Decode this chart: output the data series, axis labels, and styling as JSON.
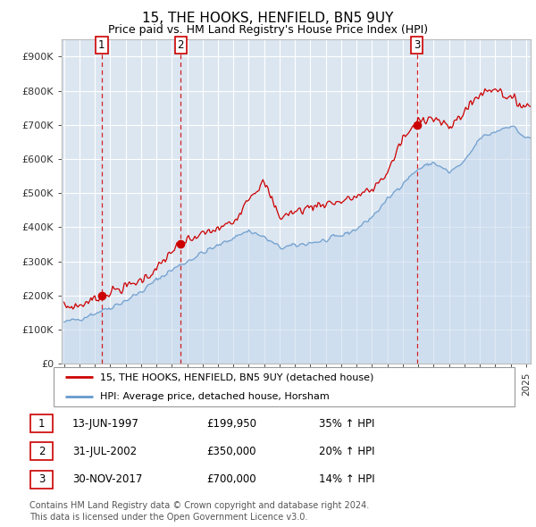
{
  "title": "15, THE HOOKS, HENFIELD, BN5 9UY",
  "subtitle": "Price paid vs. HM Land Registry's House Price Index (HPI)",
  "ylim": [
    0,
    950000
  ],
  "yticks": [
    0,
    100000,
    200000,
    300000,
    400000,
    500000,
    600000,
    700000,
    800000,
    900000
  ],
  "ytick_labels": [
    "£0",
    "£100K",
    "£200K",
    "£300K",
    "£400K",
    "£500K",
    "£600K",
    "£700K",
    "£800K",
    "£900K"
  ],
  "x_start_year": 1995,
  "x_end_year": 2025,
  "sale_years": [
    1997.453,
    2002.581,
    2017.916
  ],
  "sale_prices": [
    199950,
    350000,
    700000
  ],
  "sale_labels": [
    "1",
    "2",
    "3"
  ],
  "hpi_key_years": [
    1995,
    1996,
    1997,
    1998,
    1999,
    2000,
    2001,
    2002,
    2003,
    2004,
    2005,
    2006,
    2007,
    2008,
    2009,
    2010,
    2011,
    2012,
    2013,
    2014,
    2015,
    2016,
    2017,
    2018,
    2019,
    2020,
    2021,
    2022,
    2023,
    2024,
    2025
  ],
  "hpi_key_values": [
    120000,
    132000,
    148000,
    165000,
    185000,
    210000,
    245000,
    275000,
    300000,
    325000,
    345000,
    370000,
    390000,
    370000,
    340000,
    345000,
    355000,
    360000,
    375000,
    395000,
    430000,
    480000,
    530000,
    570000,
    590000,
    560000,
    590000,
    660000,
    680000,
    700000,
    660000
  ],
  "price_key_years": [
    1995,
    1996,
    1997,
    1997.453,
    1998,
    1999,
    2000,
    2001,
    2002,
    2002.581,
    2003,
    2004,
    2005,
    2006,
    2007,
    2008,
    2009,
    2010,
    2011,
    2012,
    2013,
    2014,
    2015,
    2016,
    2017,
    2017.916,
    2018,
    2019,
    2020,
    2021,
    2022,
    2023,
    2024,
    2025
  ],
  "price_key_values": [
    165000,
    170000,
    190000,
    199950,
    210000,
    225000,
    245000,
    275000,
    330000,
    350000,
    360000,
    380000,
    395000,
    415000,
    490000,
    530000,
    430000,
    445000,
    460000,
    470000,
    475000,
    490000,
    510000,
    560000,
    660000,
    700000,
    720000,
    720000,
    690000,
    740000,
    790000,
    810000,
    775000,
    755000
  ],
  "hpi_noise_seed": 42,
  "price_noise_seed": 7,
  "hpi_noise_std": 6000,
  "price_noise_std": 9000,
  "legend_line1": "15, THE HOOKS, HENFIELD, BN5 9UY (detached house)",
  "legend_line2": "HPI: Average price, detached house, Horsham",
  "table_rows": [
    {
      "label": "1",
      "date": "13-JUN-1997",
      "price": "£199,950",
      "hpi": "35% ↑ HPI"
    },
    {
      "label": "2",
      "date": "31-JUL-2002",
      "price": "£350,000",
      "hpi": "20% ↑ HPI"
    },
    {
      "label": "3",
      "date": "30-NOV-2017",
      "price": "£700,000",
      "hpi": "14% ↑ HPI"
    }
  ],
  "footnote1": "Contains HM Land Registry data © Crown copyright and database right 2024.",
  "footnote2": "This data is licensed under the Open Government Licence v3.0.",
  "price_line_color": "#cc0000",
  "hpi_line_color": "#6699cc",
  "hpi_fill_color": "#c5d8ed",
  "bg_color": "#dce6f1",
  "plot_bg": "#ffffff",
  "vline_color": "#cc0000",
  "marker_color": "#cc0000",
  "box_edge_color": "#cc0000",
  "legend_edge_color": "#999999",
  "grid_color": "#ffffff",
  "tick_color": "#333333",
  "title_fontsize": 11,
  "subtitle_fontsize": 9,
  "tick_fontsize": 8,
  "legend_fontsize": 8,
  "table_fontsize": 8.5,
  "footnote_fontsize": 7
}
